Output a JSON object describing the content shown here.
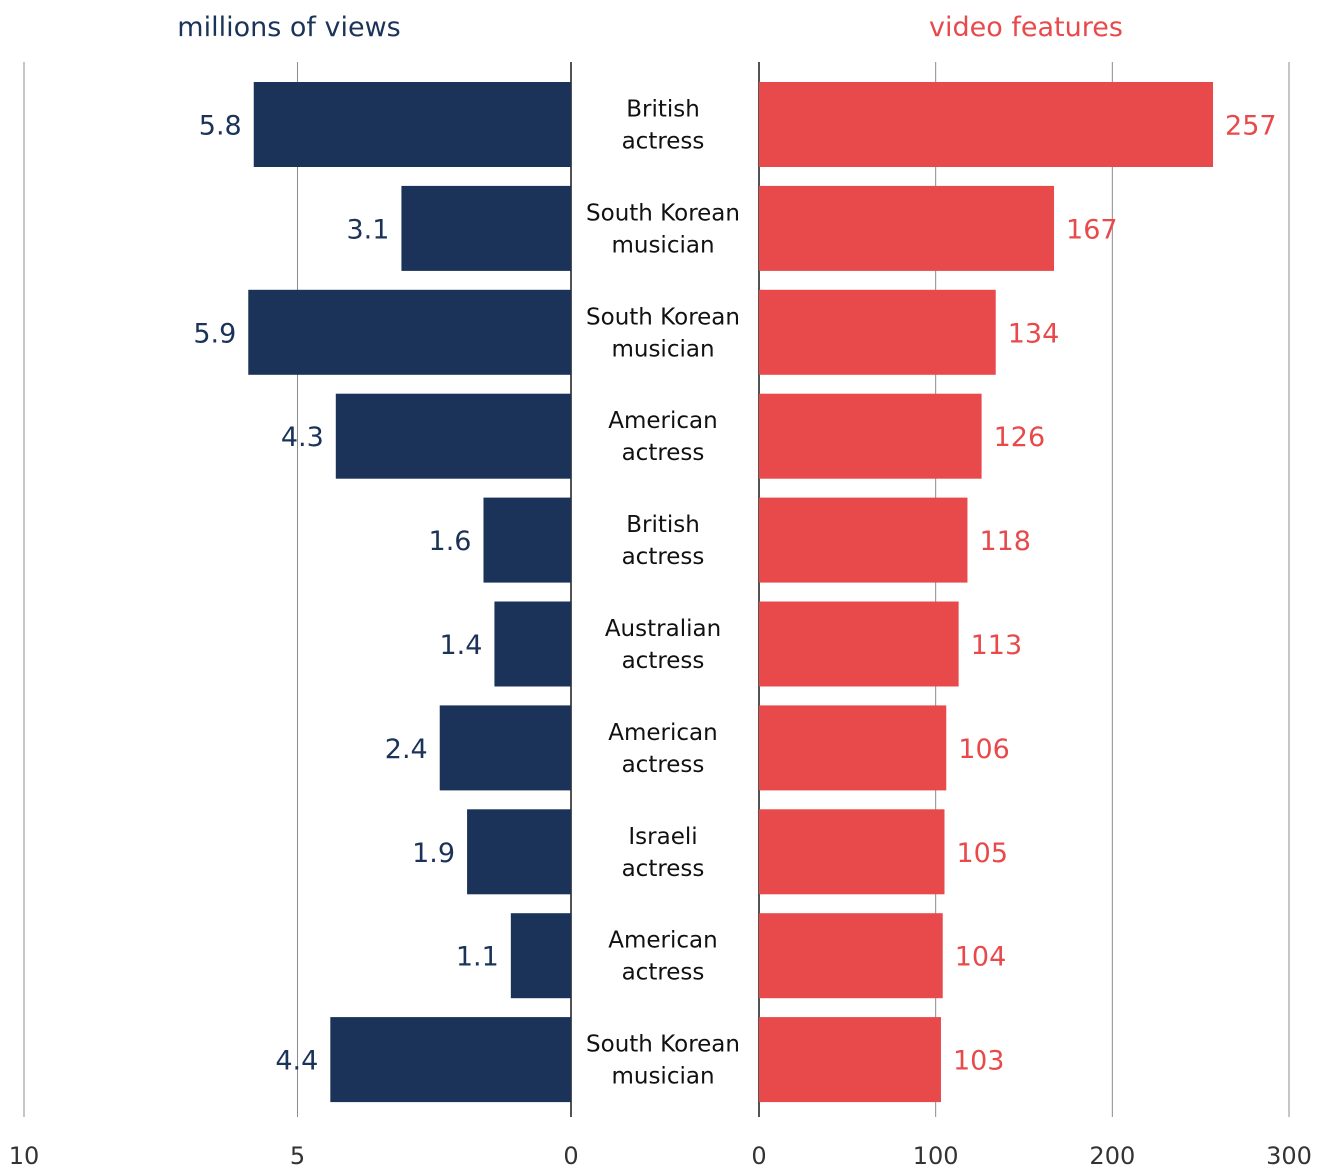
{
  "chart_data": {
    "type": "bar",
    "left_panel": {
      "header": "millions of views",
      "xlim": [
        0,
        10
      ],
      "ticks": [
        "10",
        "5",
        "0"
      ],
      "tick_values": [
        10,
        5,
        0
      ],
      "values": [
        5.8,
        3.1,
        5.9,
        4.3,
        1.6,
        1.4,
        2.4,
        1.9,
        1.1,
        4.4
      ],
      "value_labels": [
        "5.8",
        "3.1",
        "5.9",
        "4.3",
        "1.6",
        "1.4",
        "2.4",
        "1.9",
        "1.1",
        "4.4"
      ],
      "color": "#1b3358",
      "direction": "leftward"
    },
    "right_panel": {
      "header": "video features",
      "xlim": [
        0,
        300
      ],
      "ticks": [
        "0",
        "100",
        "200",
        "300"
      ],
      "tick_values": [
        0,
        100,
        200,
        300
      ],
      "values": [
        257,
        167,
        134,
        126,
        118,
        113,
        106,
        105,
        104,
        103
      ],
      "value_labels": [
        "257",
        "167",
        "134",
        "126",
        "118",
        "113",
        "106",
        "105",
        "104",
        "103"
      ],
      "color": "#e84a4b",
      "direction": "rightward"
    },
    "categories": [
      [
        "British",
        "actress"
      ],
      [
        "South Korean",
        "musician"
      ],
      [
        "South Korean",
        "musician"
      ],
      [
        "American",
        "actress"
      ],
      [
        "British",
        "actress"
      ],
      [
        "Australian",
        "actress"
      ],
      [
        "American",
        "actress"
      ],
      [
        "Israeli",
        "actress"
      ],
      [
        "American",
        "actress"
      ],
      [
        "South Korean",
        "musician"
      ]
    ],
    "grid": true,
    "legend": "none"
  }
}
